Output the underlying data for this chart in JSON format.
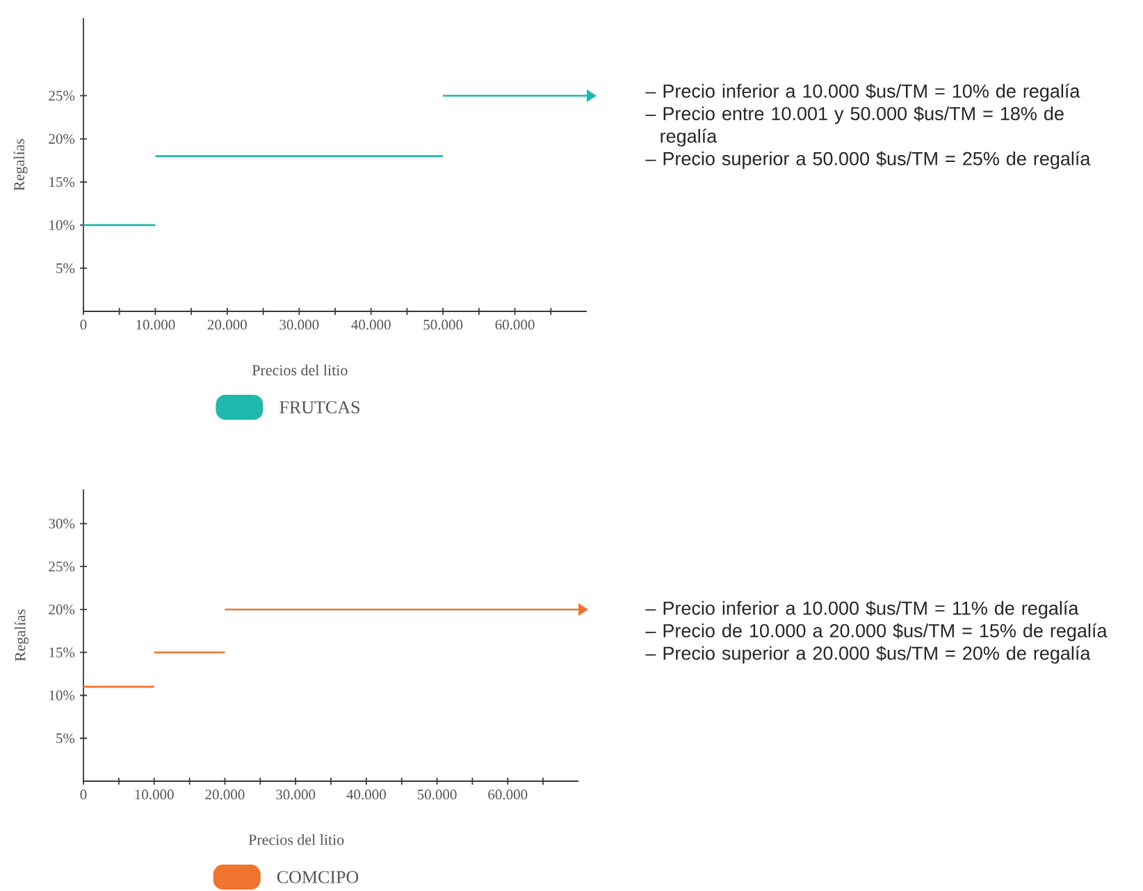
{
  "chart_data": [
    {
      "type": "line",
      "xlabel": "Precios del litio",
      "ylabel": "Regalías",
      "xlim": [
        0,
        70000
      ],
      "ylim": [
        0,
        34
      ],
      "xticks": [
        0,
        {
          "value": 5000,
          "label": null
        },
        {
          "value": 10000,
          "label": "10.000"
        },
        {
          "value": 15000,
          "label": null
        },
        {
          "value": 20000,
          "label": "20.000"
        },
        {
          "value": 25000,
          "label": null
        },
        {
          "value": 30000,
          "label": "30.000"
        },
        {
          "value": 35000,
          "label": null
        },
        {
          "value": 40000,
          "label": "40.000"
        },
        {
          "value": 45000,
          "label": null
        },
        {
          "value": 50000,
          "label": "50.000"
        },
        {
          "value": 55000,
          "label": null
        },
        {
          "value": 60000,
          "label": "60.000"
        },
        {
          "value": 65000,
          "label": null
        }
      ],
      "yticks": [
        {
          "value": 5,
          "label": "5%"
        },
        {
          "value": 10,
          "label": "10%"
        },
        {
          "value": 15,
          "label": "15%"
        },
        {
          "value": 20,
          "label": "20%"
        },
        {
          "value": 25,
          "label": "25%"
        }
      ],
      "legend": "bottom",
      "series": [
        {
          "name": "FRUTCAS",
          "color": "#1fb8ad",
          "x": [
            0,
            10000
          ],
          "values": [
            10,
            10
          ]
        },
        {
          "color": "#1fb8ad",
          "x": [
            10000,
            50000
          ],
          "values": [
            18,
            18
          ]
        },
        {
          "color": "#1fb8ad",
          "x": [
            50000,
            70000
          ],
          "values": [
            25,
            25
          ]
        }
      ],
      "annotations": [
        "– Precio inferior a 10.000 $us/TM = 10% de regalía",
        "– Precio entre 10.001 y 50.000 $us/TM = 18% de regalía",
        "– Precio superior a 50.000 $us/TM = 25% de regalía"
      ]
    },
    {
      "type": "line",
      "xlabel": "Precios del litio",
      "ylabel": "Regalías",
      "xlim": [
        0,
        70000
      ],
      "ylim": [
        0,
        34
      ],
      "xticks": [
        0,
        {
          "value": 5000,
          "label": null
        },
        {
          "value": 10000,
          "label": "10.000"
        },
        {
          "value": 15000,
          "label": null
        },
        {
          "value": 20000,
          "label": "20.000"
        },
        {
          "value": 25000,
          "label": null
        },
        {
          "value": 30000,
          "label": "30.000"
        },
        {
          "value": 35000,
          "label": null
        },
        {
          "value": 40000,
          "label": "40.000"
        },
        {
          "value": 45000,
          "label": null
        },
        {
          "value": 50000,
          "label": "50.000"
        },
        {
          "value": 55000,
          "label": null
        },
        {
          "value": 60000,
          "label": "60.000"
        },
        {
          "value": 65000,
          "label": null
        }
      ],
      "yticks": [
        {
          "value": 5,
          "label": "5%"
        },
        {
          "value": 10,
          "label": "10%"
        },
        {
          "value": 15,
          "label": "15%"
        },
        {
          "value": 20,
          "label": "20%"
        },
        {
          "value": 25,
          "label": "25%"
        },
        {
          "value": 30,
          "label": "30%"
        }
      ],
      "legend": "bottom",
      "series": [
        {
          "name": "COMCIPO",
          "color": "#f0732e",
          "x": [
            0,
            10000
          ],
          "values": [
            11,
            11
          ]
        },
        {
          "color": "#f0732e",
          "x": [
            10000,
            20000
          ],
          "values": [
            15,
            15
          ]
        },
        {
          "color": "#f0732e",
          "x": [
            20000,
            70000
          ],
          "values": [
            20,
            20
          ]
        }
      ],
      "annotations": [
        "– Precio inferior a 10.000 $us/TM = 11% de regalía",
        "– Precio de 10.000 a 20.000 $us/TM = 15% de regalía",
        "– Precio superior a 20.000 $us/TM = 20% de regalía"
      ]
    }
  ]
}
